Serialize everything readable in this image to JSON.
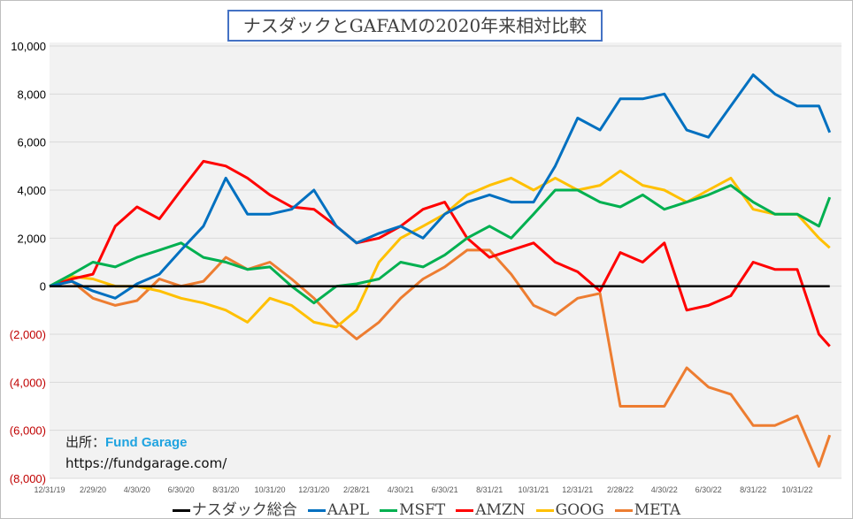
{
  "chart_data": {
    "type": "line",
    "title": "ナスダックとGAFAMの2020年来相対比較",
    "xlabel": "",
    "ylabel": "",
    "x_tick_labels": [
      "12/31/19",
      "2/29/20",
      "4/30/20",
      "6/30/20",
      "8/31/20",
      "10/31/20",
      "12/31/20",
      "2/28/21",
      "4/30/21",
      "6/30/21",
      "8/31/21",
      "10/31/21",
      "12/31/21",
      "2/28/22",
      "4/30/22",
      "6/30/22",
      "8/31/22",
      "10/31/22"
    ],
    "y_tick_labels": [
      "10,000",
      "8,000",
      "6,000",
      "4,000",
      "2,000",
      "0",
      "(2,000)",
      "(4,000)",
      "(6,000)",
      "(8,000)"
    ],
    "ylim": [
      -8000,
      10000
    ],
    "grid": true,
    "legend_position": "bottom",
    "negative_label_color": "#c00000",
    "x": [
      "2019-12-31",
      "2020-01-31",
      "2020-02-29",
      "2020-03-31",
      "2020-04-30",
      "2020-05-31",
      "2020-06-30",
      "2020-07-31",
      "2020-08-31",
      "2020-09-30",
      "2020-10-31",
      "2020-11-30",
      "2020-12-31",
      "2021-01-31",
      "2021-02-28",
      "2021-03-31",
      "2021-04-30",
      "2021-05-31",
      "2021-06-30",
      "2021-07-31",
      "2021-08-31",
      "2021-09-30",
      "2021-10-31",
      "2021-11-30",
      "2021-12-31",
      "2022-01-31",
      "2022-02-28",
      "2022-03-31",
      "2022-04-30",
      "2022-05-31",
      "2022-06-30",
      "2022-07-31",
      "2022-08-31",
      "2022-09-30",
      "2022-10-31",
      "2022-11-30",
      "2022-12-15"
    ],
    "series": [
      {
        "name": "ナスダック総合",
        "color": "#000000",
        "values": [
          0,
          0,
          0,
          0,
          0,
          0,
          0,
          0,
          0,
          0,
          0,
          0,
          0,
          0,
          0,
          0,
          0,
          0,
          0,
          0,
          0,
          0,
          0,
          0,
          0,
          0,
          0,
          0,
          0,
          0,
          0,
          0,
          0,
          0,
          0,
          0,
          0
        ]
      },
      {
        "name": "AAPL",
        "color": "#0070c0",
        "values": [
          0,
          200,
          -200,
          -500,
          100,
          500,
          1500,
          2500,
          4500,
          3000,
          3000,
          3200,
          4000,
          2500,
          1800,
          2200,
          2500,
          2000,
          3000,
          3500,
          3800,
          3500,
          3500,
          5000,
          7000,
          6500,
          7800,
          7800,
          8000,
          6500,
          6200,
          7500,
          8800,
          8000,
          7500,
          7500,
          6400
        ]
      },
      {
        "name": "MSFT",
        "color": "#00b050",
        "values": [
          0,
          500,
          1000,
          800,
          1200,
          1500,
          1800,
          1200,
          1000,
          700,
          800,
          0,
          -700,
          0,
          100,
          300,
          1000,
          800,
          1300,
          2000,
          2500,
          2000,
          3000,
          4000,
          4000,
          3500,
          3300,
          3800,
          3200,
          3500,
          3800,
          4200,
          3500,
          3000,
          3000,
          2500,
          3700
        ]
      },
      {
        "name": "AMZN",
        "color": "#ff0000",
        "values": [
          0,
          300,
          500,
          2500,
          3300,
          2800,
          4000,
          5200,
          5000,
          4500,
          3800,
          3300,
          3200,
          2500,
          1800,
          2000,
          2500,
          3200,
          3500,
          2000,
          1200,
          1500,
          1800,
          1000,
          600,
          -200,
          1400,
          1000,
          1800,
          -1000,
          -800,
          -400,
          1000,
          700,
          700,
          -2000,
          -2500
        ]
      },
      {
        "name": "GOOG",
        "color": "#ffc000",
        "values": [
          0,
          400,
          300,
          0,
          0,
          -200,
          -500,
          -700,
          -1000,
          -1500,
          -500,
          -800,
          -1500,
          -1700,
          -1000,
          1000,
          2000,
          2500,
          3000,
          3800,
          4200,
          4500,
          4000,
          4500,
          4000,
          4200,
          4800,
          4200,
          4000,
          3500,
          4000,
          4500,
          3200,
          3000,
          3000,
          2000,
          1600
        ]
      },
      {
        "name": "META",
        "color": "#ed7d31",
        "values": [
          0,
          200,
          -500,
          -800,
          -600,
          300,
          0,
          200,
          1200,
          700,
          1000,
          300,
          -500,
          -1500,
          -2200,
          -1500,
          -500,
          300,
          800,
          1500,
          1500,
          500,
          -800,
          -1200,
          -500,
          -300,
          -5000,
          -5000,
          -5000,
          -3400,
          -4200,
          -4500,
          -5800,
          -5800,
          -5400,
          -7500,
          -6200
        ]
      }
    ]
  },
  "source": {
    "label": "出所：",
    "brand": "Fund Garage",
    "url": "https://fundgarage.com/"
  }
}
